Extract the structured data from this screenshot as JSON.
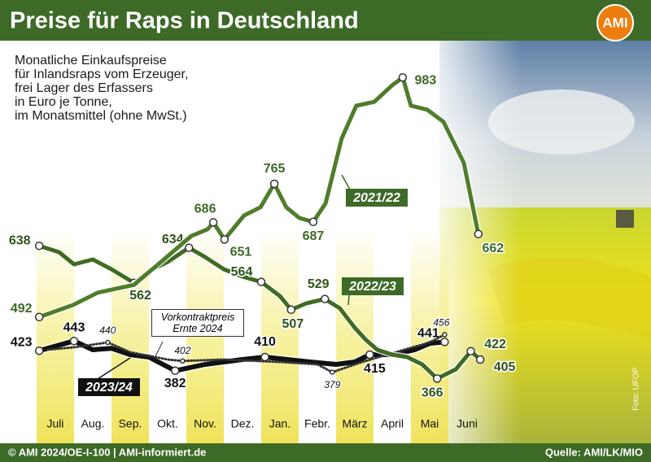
{
  "chart_data": {
    "type": "line",
    "title": "Preise für Raps in Deutschland",
    "logo": "AMI",
    "subtitle": [
      "Monatliche Einkaufspreise",
      "für Inlandsraps vom Erzeuger,",
      "frei Lager des Erfassers",
      "in Euro je Tonne,",
      "im Monatsmittel (ohne MwSt.)"
    ],
    "categories": [
      "Juli",
      "Aug.",
      "Sep.",
      "Okt.",
      "Nov.",
      "Dez.",
      "Jan.",
      "Febr.",
      "März",
      "April",
      "Mai",
      "Juni"
    ],
    "ylim": [
      300,
      1050
    ],
    "series": [
      {
        "name": "2021/22",
        "color": "#4f7d2b",
        "style": "solid",
        "x": [
          -0.43,
          0.48,
          1.13,
          2.1,
          2.87,
          3.63,
          4.07,
          4.22,
          4.52,
          5.04,
          5.48,
          5.85,
          6.17,
          6.52,
          6.89,
          7.22,
          7.65,
          8.04,
          8.52,
          9.0,
          9.28,
          9.5,
          9.93,
          10.37,
          10.913,
          11.3
        ],
        "values": [
          492,
          517,
          542,
          558,
          608,
          658,
          672,
          686,
          651,
          700,
          717,
          765,
          717,
          695,
          687,
          725,
          858,
          925,
          933,
          967,
          983,
          925,
          917,
          892,
          808,
          662
        ],
        "value_labels": [
          "492",
          null,
          null,
          null,
          null,
          null,
          null,
          "686",
          "651",
          null,
          null,
          "765",
          null,
          null,
          "687",
          null,
          null,
          null,
          null,
          null,
          "983",
          null,
          null,
          null,
          null,
          "662"
        ]
      },
      {
        "name": "2022/23",
        "color": "#3f6b22",
        "style": "solid",
        "x": [
          -0.43,
          0.1,
          0.5,
          1.0,
          1.5,
          2.1,
          2.6,
          3.0,
          3.57,
          4.0,
          4.5,
          5.0,
          5.5,
          6.0,
          6.3,
          6.7,
          7.2,
          7.6,
          8.0,
          8.3,
          8.6,
          9.0,
          9.4,
          9.8,
          10.2,
          10.7,
          11.1,
          11.35
        ],
        "values": [
          638,
          625,
          600,
          610,
          590,
          562,
          590,
          605,
          634,
          615,
          590,
          575,
          564,
          535,
          507,
          520,
          529,
          510,
          470,
          445,
          425,
          415,
          410,
          395,
          366,
          385,
          422,
          405
        ],
        "value_labels": [
          "638",
          null,
          null,
          null,
          null,
          "562",
          null,
          null,
          "634",
          null,
          null,
          null,
          "564",
          null,
          "507",
          null,
          "529",
          null,
          null,
          null,
          null,
          null,
          null,
          null,
          "366",
          null,
          "422",
          "405"
        ]
      },
      {
        "name": "2023/24",
        "color": "#111111",
        "style": "solid",
        "x": [
          -0.43,
          0.5,
          1.0,
          1.5,
          2.0,
          2.5,
          3.2,
          4.0,
          4.5,
          5.0,
          5.6,
          6.2,
          6.8,
          7.5,
          8.0,
          8.4,
          9.0,
          9.6,
          10.0,
          10.4
        ],
        "values": [
          423,
          443,
          425,
          428,
          415,
          410,
          382,
          395,
          400,
          405,
          410,
          405,
          400,
          395,
          400,
          415,
          415,
          425,
          438,
          441
        ],
        "value_labels": [
          "423",
          "443",
          null,
          null,
          null,
          null,
          "382",
          null,
          null,
          null,
          "410",
          null,
          null,
          null,
          null,
          "415",
          null,
          null,
          null,
          "441"
        ]
      },
      {
        "name": "Vorkontraktpreis Ernte 2024",
        "color": "#333333",
        "style": "dotted",
        "x": [
          -0.2,
          0.5,
          1.4,
          2.0,
          3.0,
          3.4,
          4.5,
          6.0,
          7.0,
          7.4,
          8.2,
          9.0,
          10.0,
          10.4
        ],
        "values": [
          425,
          430,
          440,
          420,
          405,
          402,
          405,
          400,
          395,
          379,
          400,
          418,
          440,
          456
        ],
        "value_labels": [
          null,
          null,
          "440",
          null,
          null,
          "402",
          null,
          null,
          null,
          "379",
          null,
          null,
          null,
          "456"
        ]
      }
    ],
    "credit": "Foto: UFOP",
    "footer_left": "© AMI 2024/OE-I-100 | AMI-informiert.de",
    "footer_right": "Quelle: AMI/LK/MIO"
  }
}
